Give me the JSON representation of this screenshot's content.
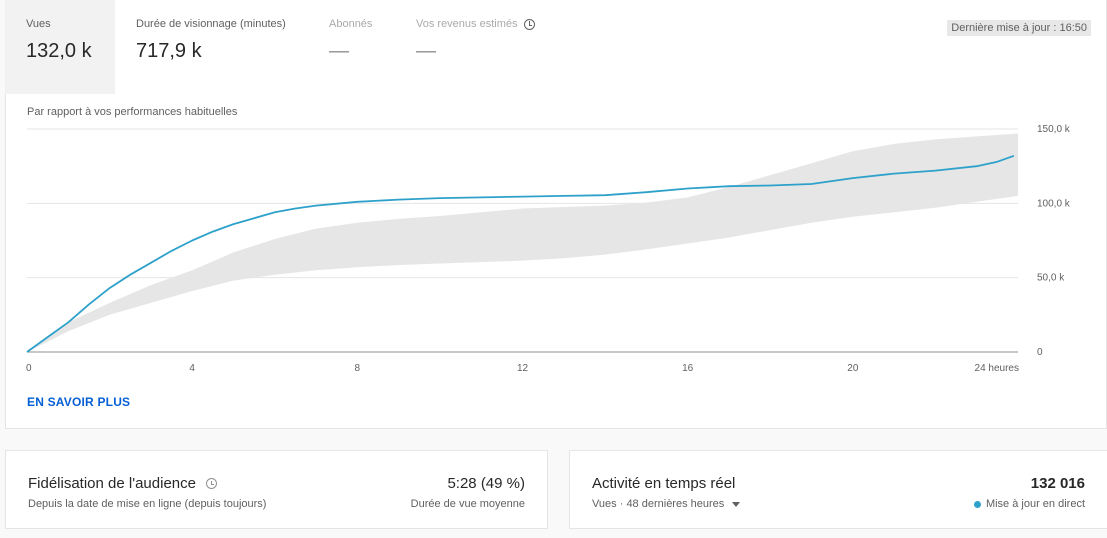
{
  "metrics": [
    {
      "label": "Vues",
      "value": "132,0 k"
    },
    {
      "label": "Durée de visionnage (minutes)",
      "value": "717,9 k"
    },
    {
      "label": "Abonnés",
      "value": "—"
    },
    {
      "label": "Vos revenus estimés",
      "value": "—"
    }
  ],
  "last_update": "Dernière mise à jour : 16:50",
  "compare_label": "Par rapport à vos performances habituelles",
  "learn_more": "EN SAVOIR PLUS",
  "colors": {
    "line": "#2ea1ca",
    "band": "#e6e6e6",
    "accent": "#065fd4"
  },
  "chart_data": {
    "type": "line",
    "ylim": [
      0,
      150000
    ],
    "xlim": [
      0,
      24
    ],
    "y_ticks": [
      "150,0 k",
      "100,0 k",
      "50,0 k",
      "0"
    ],
    "y_tick_values": [
      150000,
      100000,
      50000,
      0
    ],
    "x_ticks": [
      "0",
      "4",
      "8",
      "12",
      "16",
      "20",
      "24 heures"
    ],
    "x_tick_values": [
      0,
      4,
      8,
      12,
      16,
      20,
      24
    ],
    "series": [
      {
        "values_x": [
          0,
          0.5,
          1,
          1.5,
          2,
          2.5,
          3,
          3.5,
          4,
          4.5,
          5,
          5.5,
          6,
          6.5,
          7,
          8,
          9,
          10,
          11,
          12,
          13,
          14,
          15,
          16,
          17,
          18,
          19,
          20,
          21,
          22,
          23,
          23.5,
          23.9
        ],
        "values_y": [
          0,
          10000,
          20000,
          32000,
          43000,
          52000,
          60000,
          68000,
          75000,
          81000,
          86000,
          90000,
          94000,
          96500,
          98500,
          101000,
          102500,
          103500,
          104000,
          104500,
          105000,
          105500,
          107500,
          110000,
          111500,
          112000,
          113000,
          117000,
          120000,
          122000,
          125000,
          128000,
          132000
        ]
      }
    ],
    "band_upper": {
      "x": [
        0,
        1,
        2,
        3,
        4,
        5,
        6,
        7,
        8,
        9,
        10,
        11,
        12,
        13,
        14,
        15,
        16,
        17,
        18,
        19,
        20,
        21,
        22,
        23,
        24
      ],
      "y": [
        0,
        20000,
        33000,
        45000,
        55000,
        67000,
        76000,
        83000,
        87000,
        89500,
        91500,
        94000,
        96500,
        97500,
        98500,
        100500,
        104000,
        111000,
        119000,
        127000,
        135000,
        140000,
        143000,
        145000,
        147000
      ]
    },
    "band_lower": {
      "x": [
        0,
        1,
        2,
        3,
        4,
        5,
        6,
        7,
        8,
        9,
        10,
        11,
        12,
        13,
        14,
        15,
        16,
        17,
        18,
        19,
        20,
        21,
        22,
        23,
        24
      ],
      "y": [
        0,
        14000,
        25000,
        33000,
        41000,
        48000,
        52000,
        55000,
        57000,
        58500,
        59500,
        60500,
        61500,
        63000,
        65500,
        69000,
        73000,
        77000,
        82000,
        87000,
        91000,
        94000,
        97000,
        101000,
        105000
      ]
    }
  },
  "retention": {
    "title": "Fidélisation de l'audience",
    "subtitle": "Depuis la date de mise en ligne (depuis toujours)",
    "value": "5:28 (49 %)",
    "value_label": "Durée de vue moyenne"
  },
  "realtime": {
    "title": "Activité en temps réel",
    "subtitle": "Vues · 48 dernières heures",
    "value": "132 016",
    "status": "Mise à jour en direct"
  }
}
